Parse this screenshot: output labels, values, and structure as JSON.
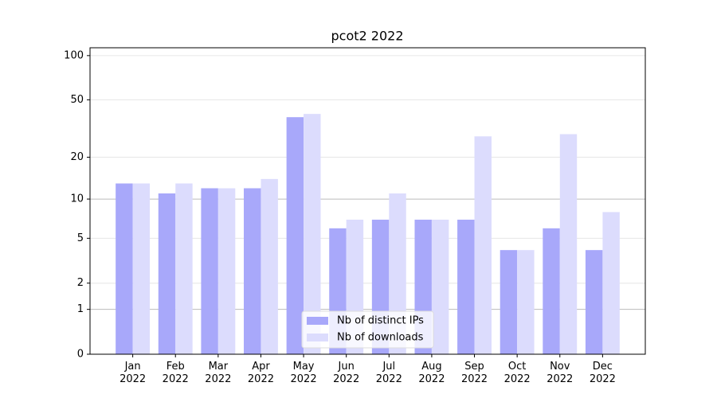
{
  "chart_data": {
    "type": "bar",
    "title": "pcot2 2022",
    "categories": [
      "Jan\n2022",
      "Feb\n2022",
      "Mar\n2022",
      "Apr\n2022",
      "May\n2022",
      "Jun\n2022",
      "Jul\n2022",
      "Aug\n2022",
      "Sep\n2022",
      "Oct\n2022",
      "Nov\n2022",
      "Dec\n2022"
    ],
    "series": [
      {
        "name": "Nb of distinct IPs",
        "color": "#a8a8fa",
        "values": [
          13,
          11,
          12,
          12,
          38,
          6,
          7,
          7,
          7,
          4,
          6,
          4
        ]
      },
      {
        "name": "Nb of downloads",
        "color": "#dcdcfd",
        "values": [
          13,
          13,
          12,
          14,
          40,
          7,
          11,
          7,
          28,
          4,
          29,
          8
        ]
      }
    ],
    "yscale": "log1p",
    "ylim": [
      0,
      113
    ],
    "yticks": [
      0,
      1,
      2,
      5,
      10,
      20,
      50,
      100
    ],
    "grid": true,
    "legend": "lower center"
  }
}
